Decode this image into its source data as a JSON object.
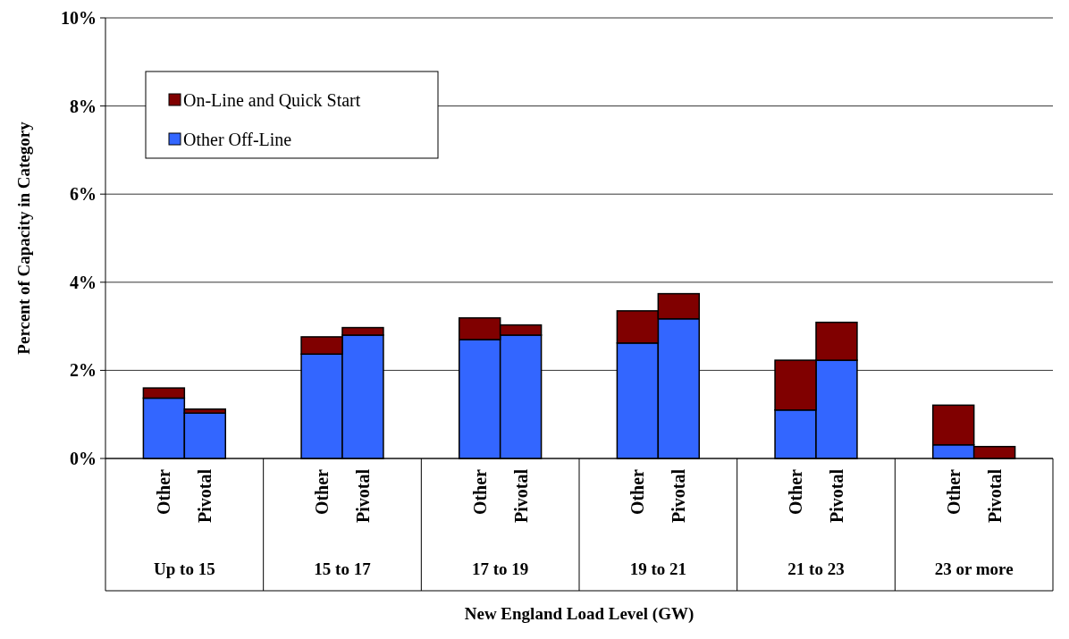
{
  "chart_data": {
    "type": "bar",
    "stacked": true,
    "xlabel": "New England Load Level (GW)",
    "ylabel": "Percent of Capacity in Category",
    "categories": [
      "Other",
      "Pivotal",
      "Other",
      "Pivotal",
      "Other",
      "Pivotal",
      "Other",
      "Pivotal",
      "Other",
      "Pivotal",
      "Other",
      "Pivotal"
    ],
    "series": [
      {
        "name": "Other Off-Line",
        "color": "#3366ff",
        "values": [
          1.37,
          1.03,
          2.37,
          2.8,
          2.7,
          2.8,
          2.62,
          3.17,
          1.1,
          2.23,
          0.31,
          0
        ]
      },
      {
        "name": "On-Line and Quick Start",
        "color": "#800000",
        "values": [
          0.23,
          0.09,
          0.39,
          0.17,
          0.49,
          0.23,
          0.73,
          0.57,
          1.13,
          0.86,
          0.9,
          0.27
        ]
      }
    ],
    "annotations": [
      "Up to 15",
      "15 to 17",
      "17 to 19",
      "19 to 21",
      "21 to 23",
      "23 or more"
    ],
    "ylim": [
      0,
      10
    ],
    "yticks": [
      {
        "value": 0,
        "label": "0%"
      },
      {
        "value": 2,
        "label": "2%"
      },
      {
        "value": 4,
        "label": "4%"
      },
      {
        "value": 6,
        "label": "6%"
      },
      {
        "value": 8,
        "label": "8%"
      },
      {
        "value": 10,
        "label": "10%"
      }
    ],
    "grid": "y",
    "legend": "top left"
  }
}
